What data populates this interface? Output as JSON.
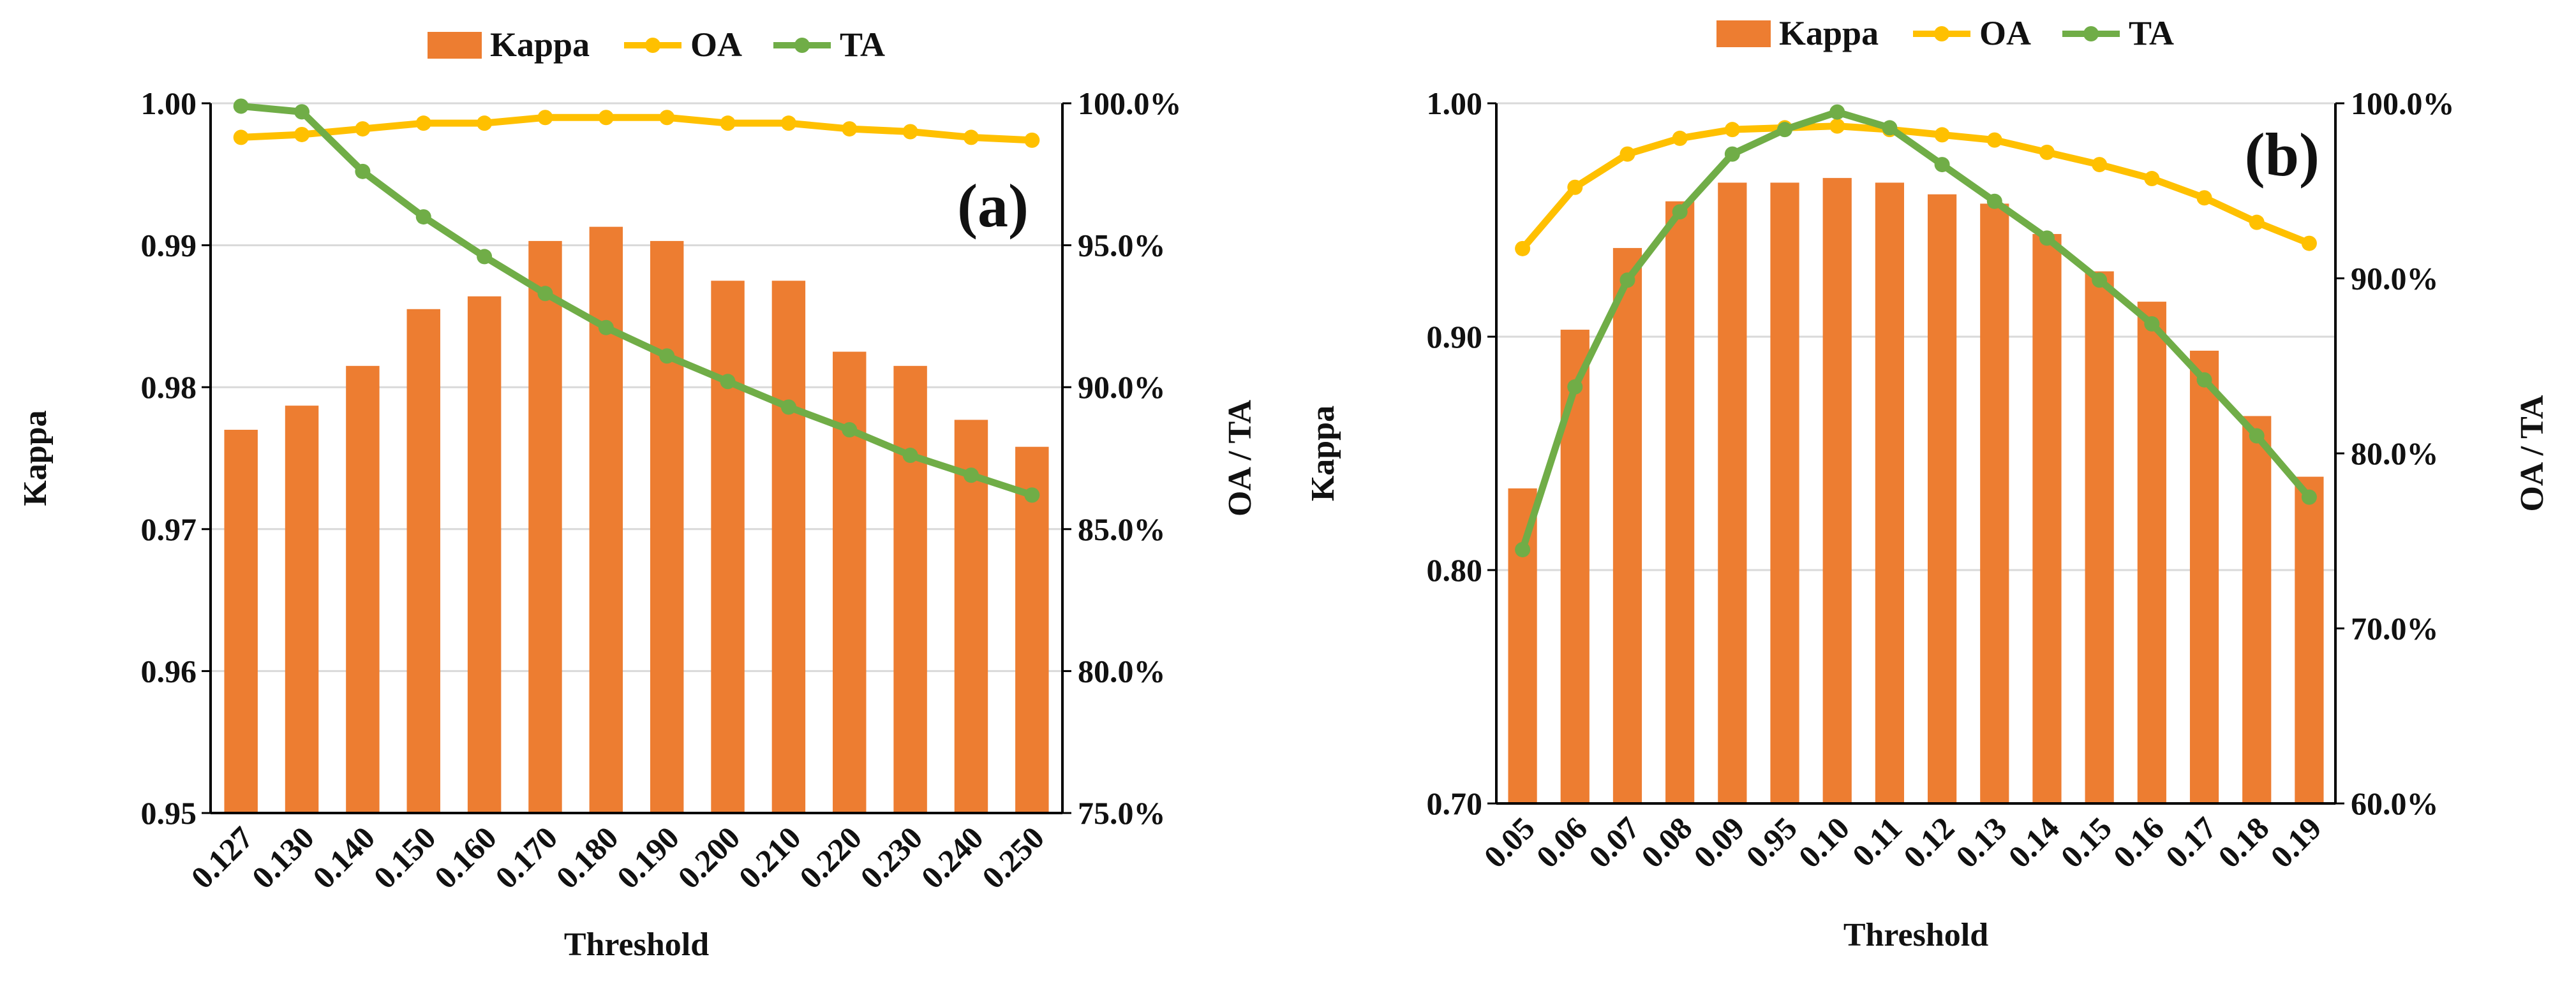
{
  "chart_data": [
    {
      "type": "bar",
      "panel_label": "(a)",
      "xlabel": "Threshold",
      "ylabel": "Kappa",
      "y2label": "OA / TA",
      "categories": [
        "0.127",
        "0.130",
        "0.140",
        "0.150",
        "0.160",
        "0.170",
        "0.180",
        "0.190",
        "0.200",
        "0.210",
        "0.220",
        "0.230",
        "0.240",
        "0.250"
      ],
      "ylim": [
        0.95,
        1.0
      ],
      "yticks": [
        "0.95",
        "0.96",
        "0.97",
        "0.98",
        "0.99",
        "1.00"
      ],
      "y2lim": [
        75.0,
        100.0
      ],
      "y2ticks": [
        "75.0%",
        "80.0%",
        "85.0%",
        "90.0%",
        "95.0%",
        "100.0%"
      ],
      "grid": true,
      "legend_position": "top",
      "series": [
        {
          "name": "Kappa",
          "kind": "bar",
          "axis": "left",
          "color": "#ED7D31",
          "values": [
            0.977,
            0.9787,
            0.9815,
            0.9855,
            0.9864,
            0.9903,
            0.9913,
            0.9903,
            0.9875,
            0.9875,
            0.9825,
            0.9815,
            0.9777,
            0.9758
          ]
        },
        {
          "name": "OA",
          "kind": "line",
          "axis": "right",
          "color": "#FFC000",
          "values": [
            98.8,
            98.9,
            99.1,
            99.3,
            99.3,
            99.5,
            99.5,
            99.5,
            99.3,
            99.3,
            99.1,
            99.0,
            98.8,
            98.7
          ]
        },
        {
          "name": "TA",
          "kind": "line",
          "axis": "right",
          "color": "#70AD47",
          "values": [
            99.9,
            99.7,
            97.6,
            96.0,
            94.6,
            93.3,
            92.1,
            91.1,
            90.2,
            89.3,
            88.5,
            87.6,
            86.9,
            86.2
          ]
        }
      ]
    },
    {
      "type": "bar",
      "panel_label": "(b)",
      "xlabel": "Threshold",
      "ylabel": "Kappa",
      "y2label": "OA / TA",
      "categories": [
        "0.05",
        "0.06",
        "0.07",
        "0.08",
        "0.09",
        "0.95",
        "0.10",
        "0.11",
        "0.12",
        "0.13",
        "0.14",
        "0.15",
        "0.16",
        "0.17",
        "0.18",
        "0.19"
      ],
      "ylim": [
        0.7,
        1.0
      ],
      "yticks": [
        "0.70",
        "0.80",
        "0.90",
        "1.00"
      ],
      "y2lim": [
        60.0,
        100.0
      ],
      "y2ticks": [
        "60.0%",
        "70.0%",
        "80.0%",
        "90.0%",
        "100.0%"
      ],
      "grid": true,
      "legend_position": "top",
      "series": [
        {
          "name": "Kappa",
          "kind": "bar",
          "axis": "left",
          "color": "#ED7D31",
          "values": [
            0.835,
            0.903,
            0.938,
            0.958,
            0.966,
            0.966,
            0.968,
            0.966,
            0.961,
            0.957,
            0.944,
            0.928,
            0.915,
            0.894,
            0.866,
            0.84
          ]
        },
        {
          "name": "OA",
          "kind": "line",
          "axis": "right",
          "color": "#FFC000",
          "values": [
            91.7,
            95.2,
            97.1,
            98.0,
            98.5,
            98.6,
            98.7,
            98.5,
            98.2,
            97.9,
            97.2,
            96.5,
            95.7,
            94.6,
            93.2,
            92.0
          ]
        },
        {
          "name": "TA",
          "kind": "line",
          "axis": "right",
          "color": "#70AD47",
          "values": [
            74.5,
            83.8,
            89.9,
            93.8,
            97.1,
            98.5,
            99.5,
            98.6,
            96.5,
            94.4,
            92.3,
            89.9,
            87.4,
            84.2,
            81.0,
            77.5
          ]
        }
      ]
    }
  ]
}
